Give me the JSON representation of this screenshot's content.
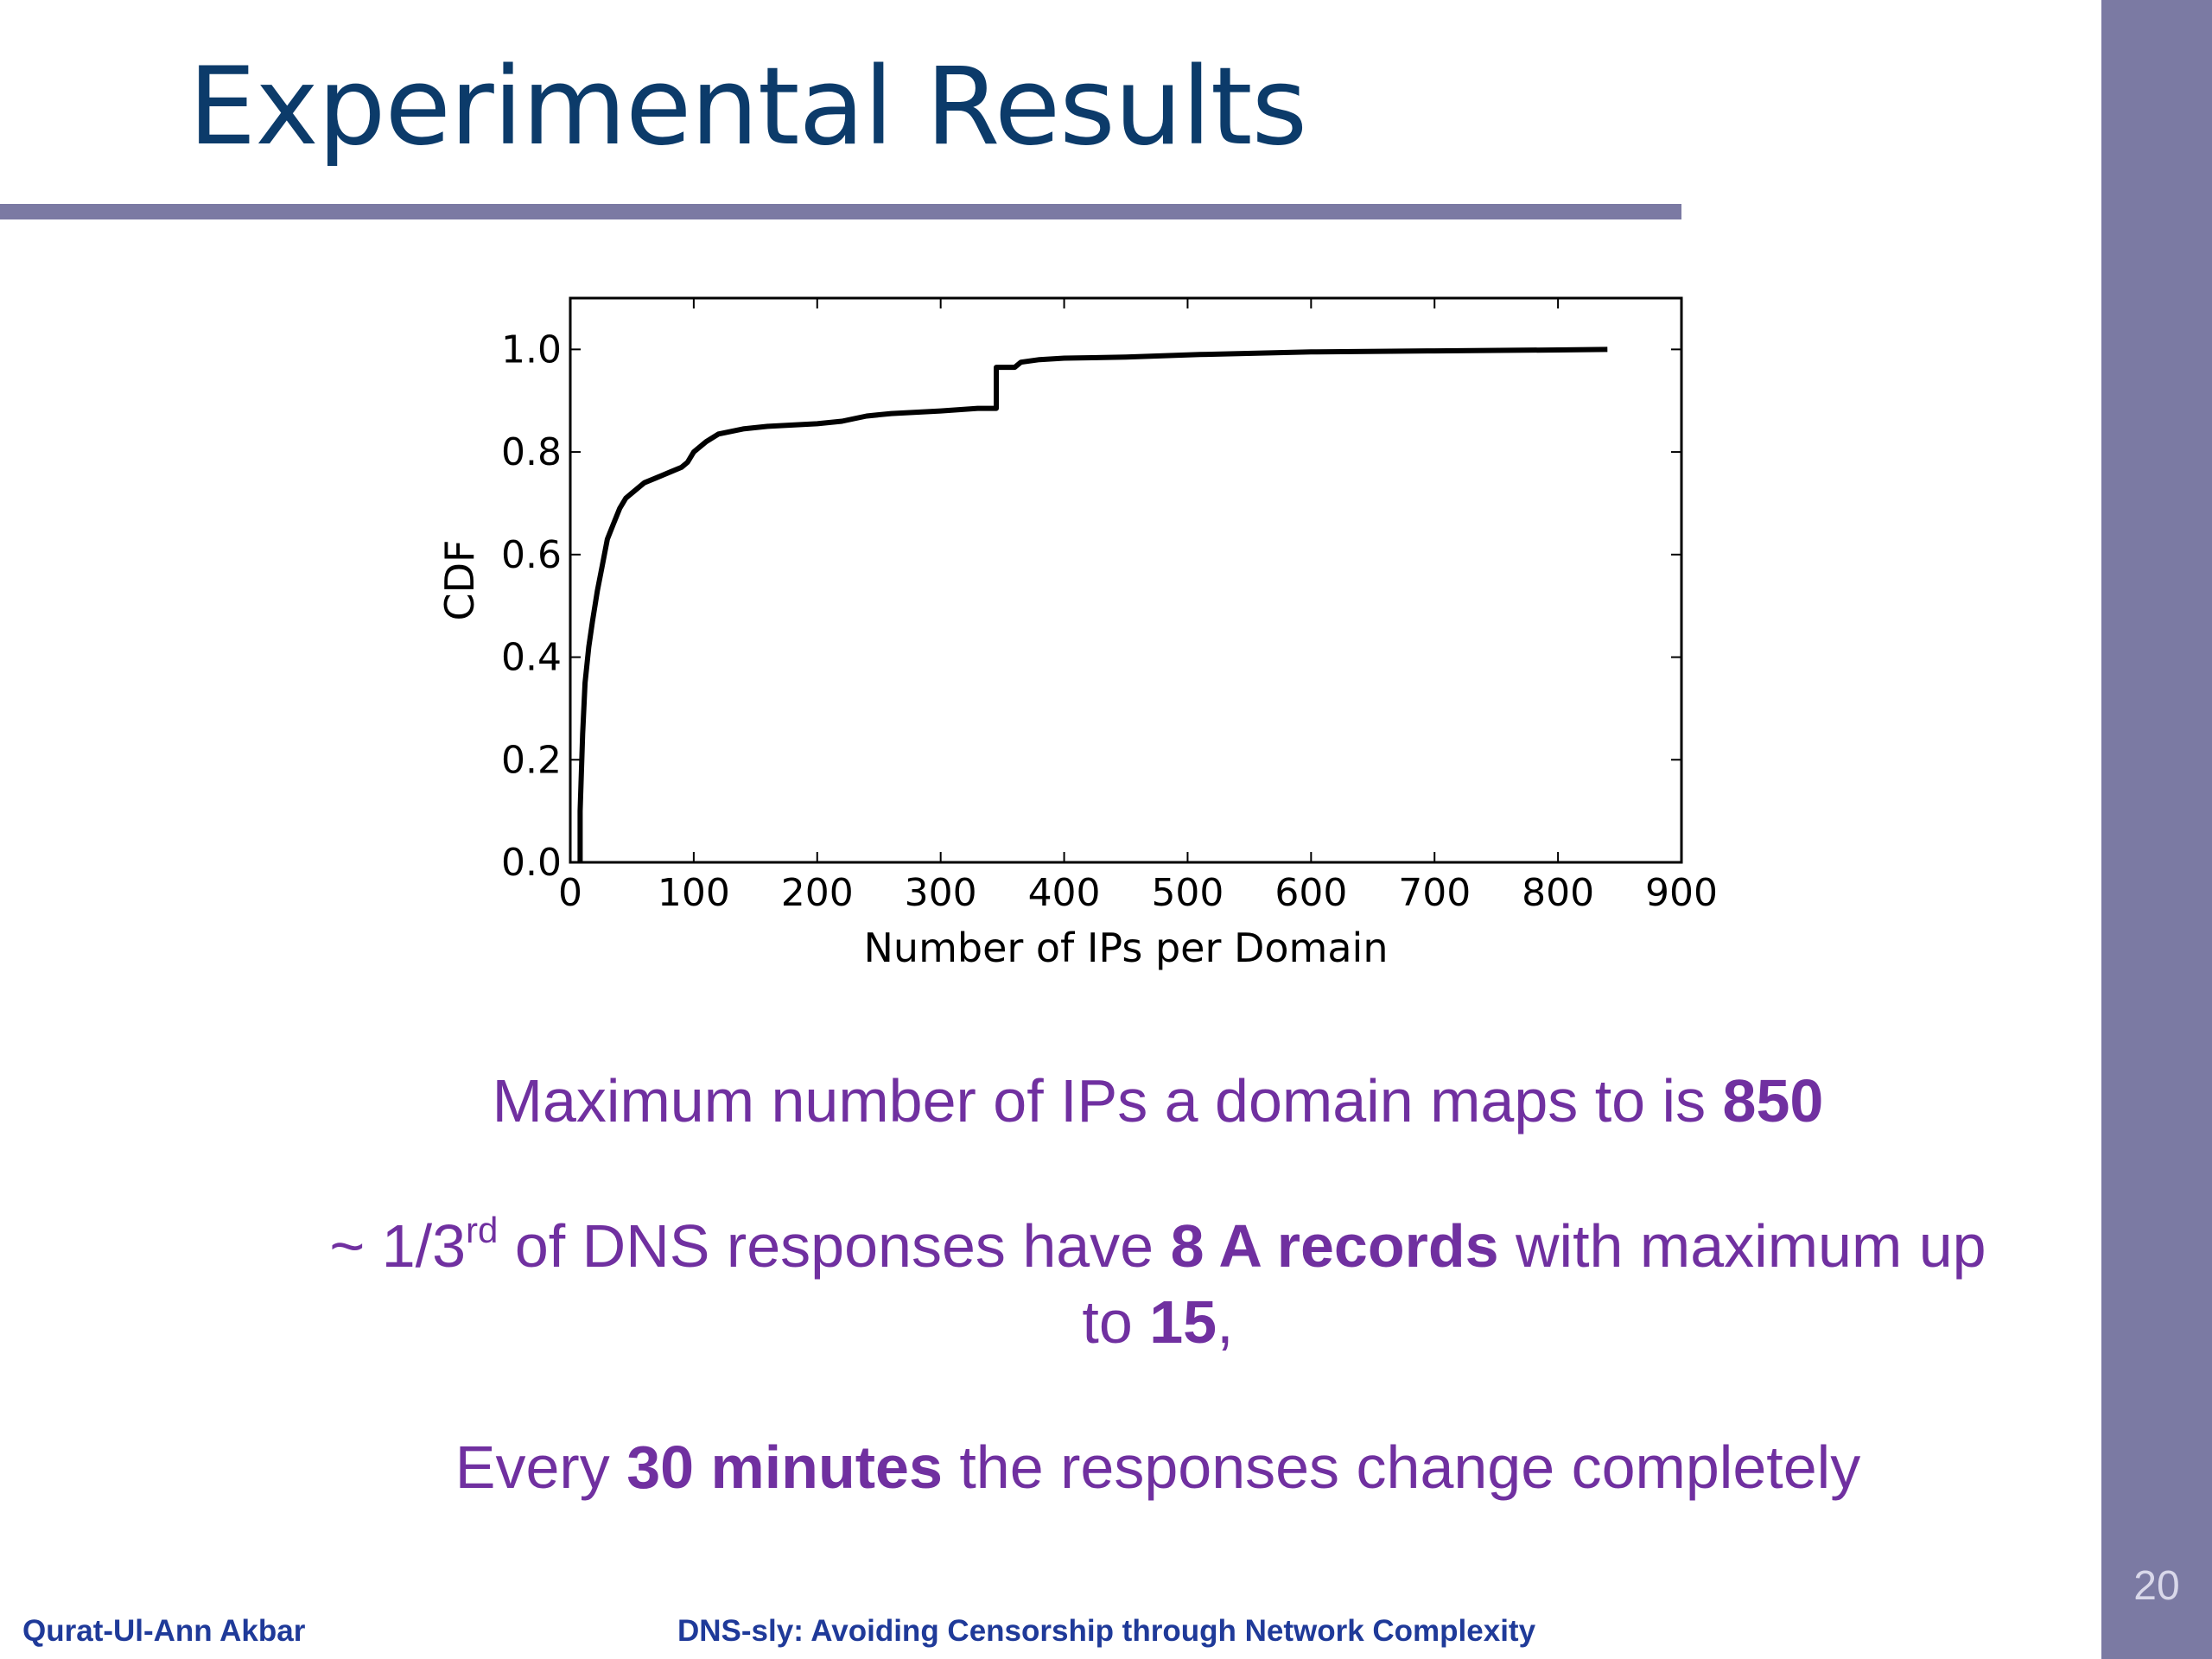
{
  "slide": {
    "title": "Experimental Results",
    "number": "20"
  },
  "footer": {
    "author": "Qurat-Ul-Ann Akbar",
    "talk_title": "DNS-sly: Avoiding Censorship through Network Complexity"
  },
  "bullets": {
    "b1_text": "Maximum number of IPs a domain maps to is ",
    "b1_bold": "850",
    "b2_prefix": "~ 1/3",
    "b2_sup": "rd",
    "b2_mid": " of DNS responses have ",
    "b2_bold1": "8 A records",
    "b2_mid2": " with maximum up to ",
    "b2_bold2": "15",
    "b2_end": ",",
    "b3_pre": "Every ",
    "b3_bold": "30 minutes",
    "b3_post": " the responses change completely"
  },
  "colors": {
    "sidebar": "#7b7aa3",
    "title": "#0c3b6a",
    "body_text": "#7030a0",
    "footer": "#1f3a99"
  },
  "chart_data": {
    "type": "line",
    "title": "",
    "xlabel": "Number of IPs per Domain",
    "ylabel": "CDF",
    "xlim": [
      0,
      900
    ],
    "ylim": [
      0.0,
      1.1
    ],
    "xticks": [
      0,
      100,
      200,
      300,
      400,
      500,
      600,
      700,
      800,
      900
    ],
    "yticks": [
      "0.0",
      "0.2",
      "0.4",
      "0.6",
      "0.8",
      "1.0"
    ],
    "grid": false,
    "series": [
      {
        "x": [
          8,
          8,
          10,
          12,
          15,
          18,
          22,
          26,
          30,
          35,
          40,
          45,
          50,
          55,
          60,
          70,
          80,
          90,
          95,
          100,
          110,
          120,
          140,
          160,
          200,
          220,
          230,
          240,
          260,
          300,
          330,
          345,
          345,
          360,
          365,
          380,
          400,
          450,
          510,
          600,
          700,
          800,
          840
        ],
        "y": [
          0.0,
          0.1,
          0.25,
          0.35,
          0.42,
          0.47,
          0.53,
          0.58,
          0.63,
          0.66,
          0.69,
          0.71,
          0.72,
          0.73,
          0.74,
          0.75,
          0.76,
          0.77,
          0.78,
          0.8,
          0.82,
          0.835,
          0.845,
          0.85,
          0.855,
          0.86,
          0.865,
          0.87,
          0.875,
          0.88,
          0.885,
          0.885,
          0.965,
          0.965,
          0.975,
          0.98,
          0.983,
          0.985,
          0.99,
          0.995,
          0.997,
          0.999,
          1.0
        ]
      }
    ]
  }
}
